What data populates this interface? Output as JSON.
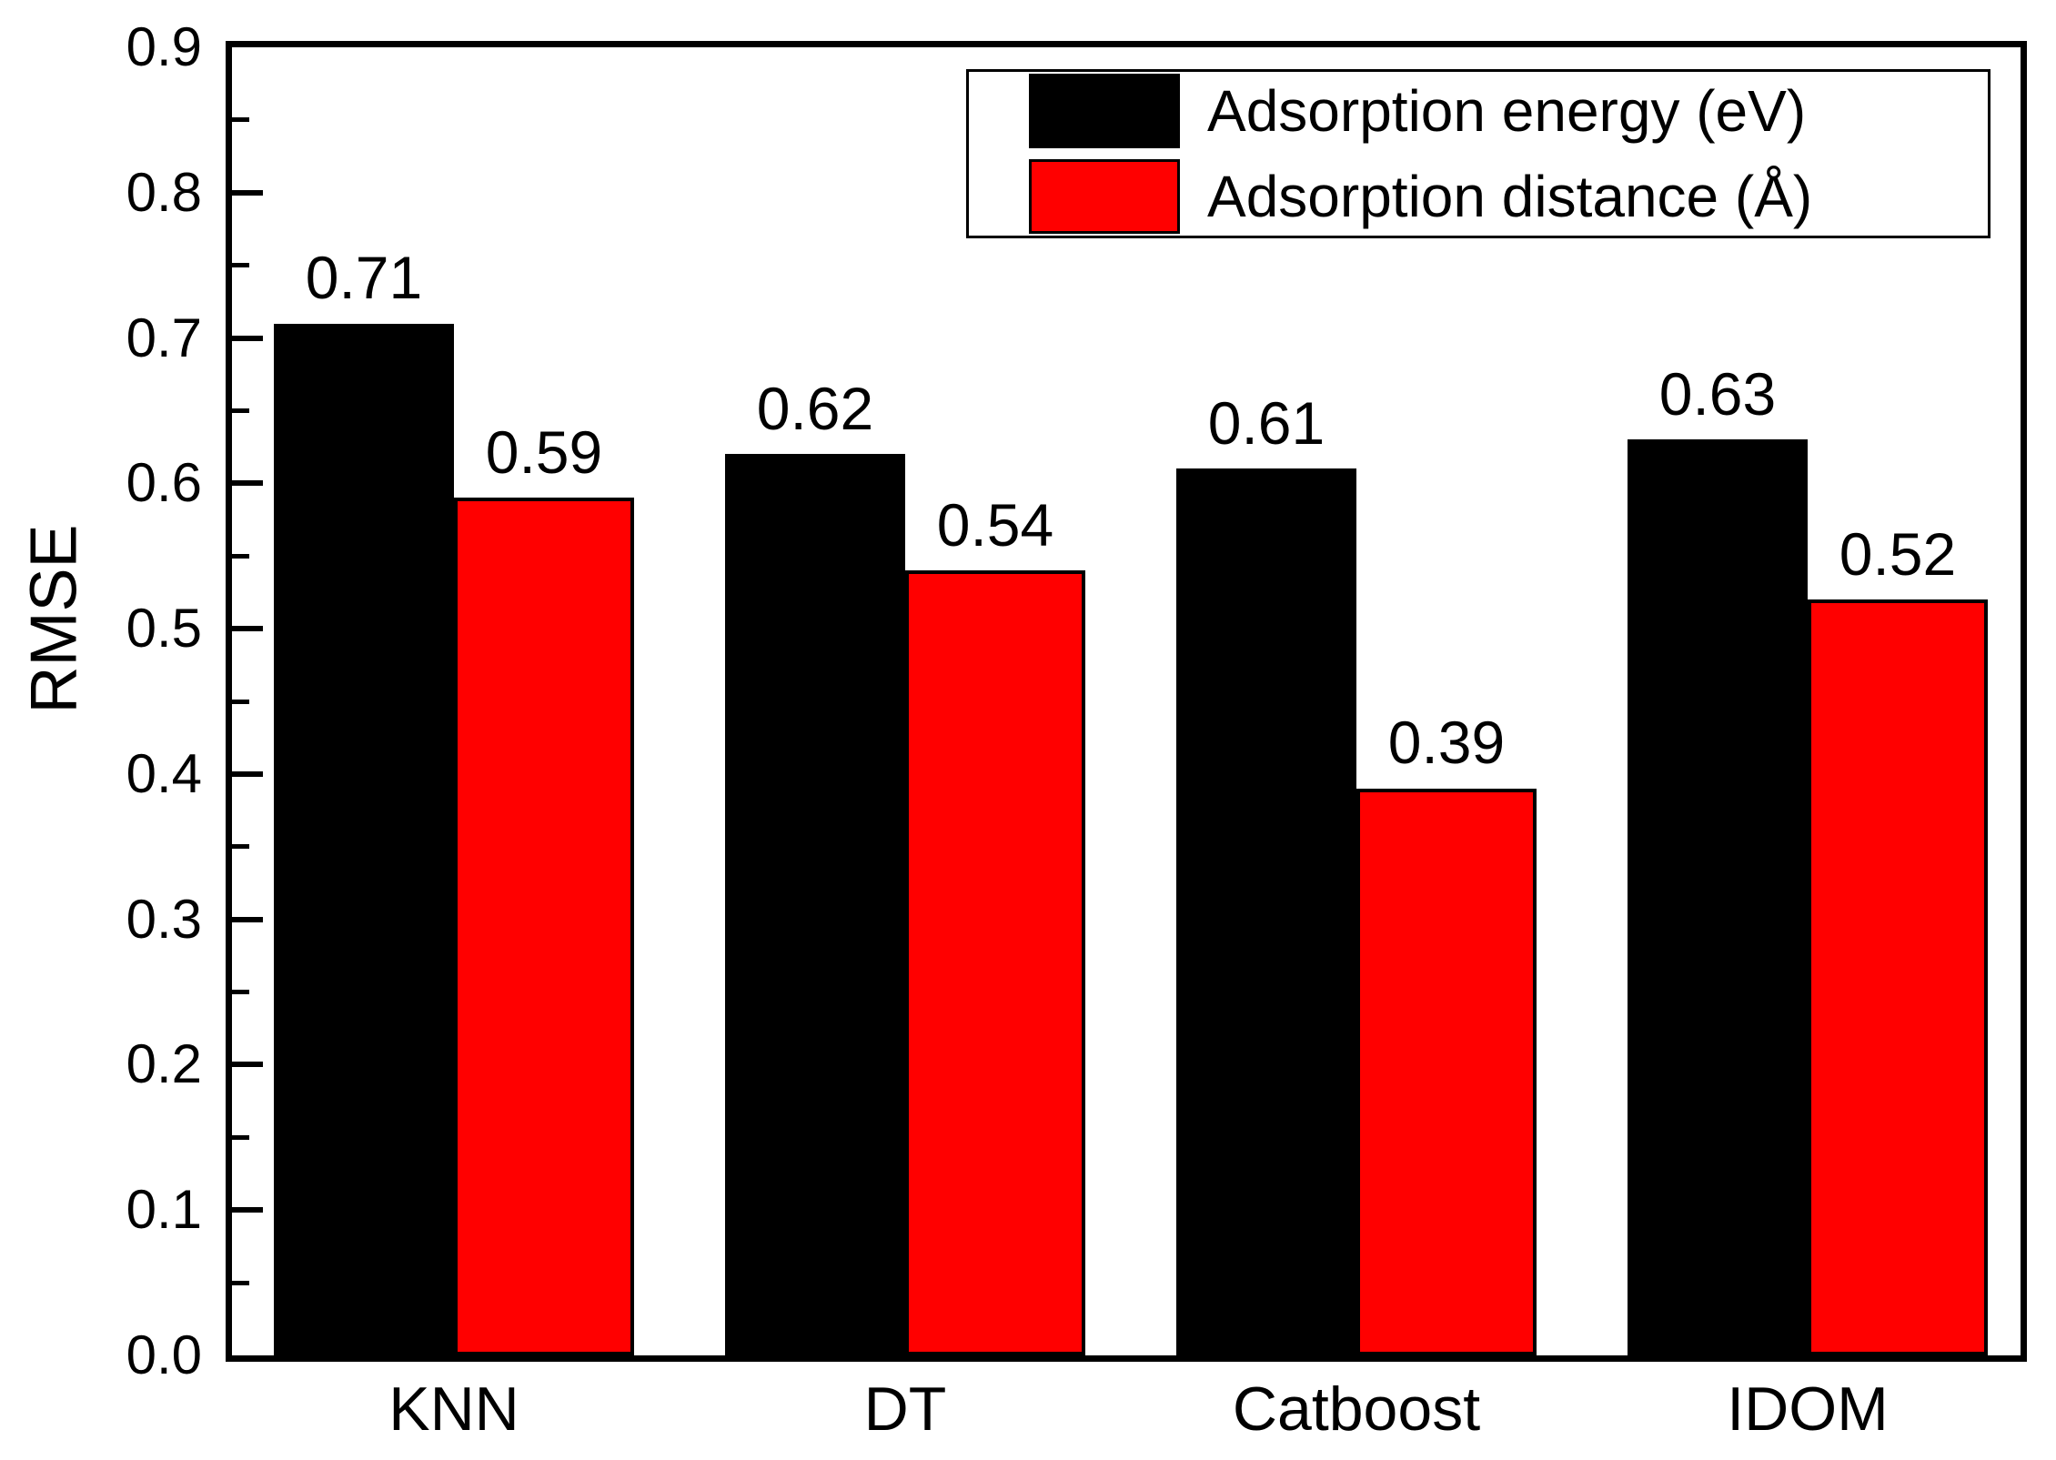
{
  "chart_data": {
    "type": "bar",
    "categories": [
      "KNN",
      "DT",
      "Catboost",
      "IDOM"
    ],
    "series": [
      {
        "name": "Adsorption energy (eV)",
        "color": "#000000",
        "values": [
          0.71,
          0.62,
          0.61,
          0.63
        ],
        "labels": [
          "0.71",
          "0.62",
          "0.61",
          "0.63"
        ]
      },
      {
        "name": "Adsorption distance (Å)",
        "color": "#ff0000",
        "values": [
          0.59,
          0.54,
          0.39,
          0.52
        ],
        "labels": [
          "0.59",
          "0.54",
          "0.39",
          "0.52"
        ]
      }
    ],
    "title": "",
    "xlabel": "",
    "ylabel": "RMSE",
    "ylim": [
      0.0,
      0.9
    ],
    "y_major_step": 0.1,
    "y_minor_step": 0.05,
    "y_tick_labels": [
      "0.0",
      "0.1",
      "0.2",
      "0.3",
      "0.4",
      "0.5",
      "0.6",
      "0.7",
      "0.8",
      "0.9"
    ],
    "grid": false,
    "legend_position": "top-right",
    "bar_value_labels_shown": true
  },
  "colors": {
    "frame": "#000000",
    "background": "#ffffff",
    "energy_bar": "#000000",
    "distance_bar": "#ff0000"
  }
}
